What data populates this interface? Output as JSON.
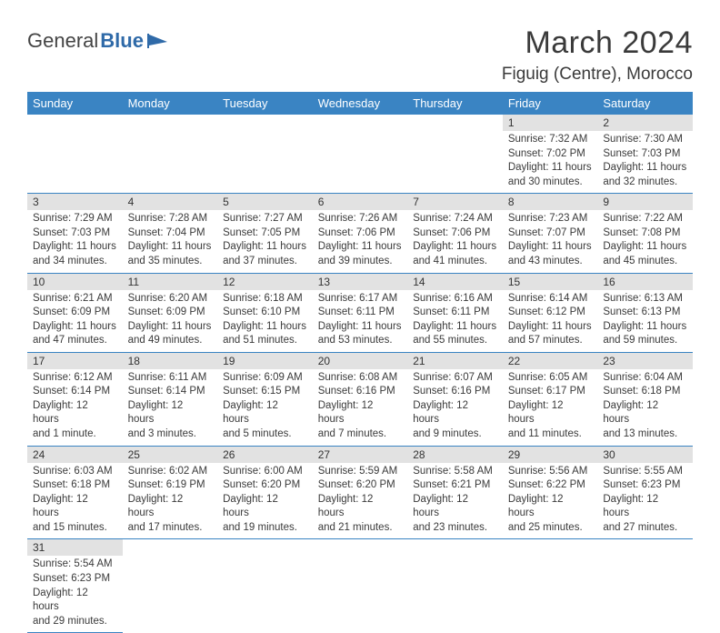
{
  "logo": {
    "word1": "General",
    "word2": "Blue"
  },
  "header": {
    "month": "March 2024",
    "location": "Figuig (Centre), Morocco"
  },
  "daynames": [
    "Sunday",
    "Monday",
    "Tuesday",
    "Wednesday",
    "Thursday",
    "Friday",
    "Saturday"
  ],
  "colors": {
    "header_bg": "#3a84c3",
    "daynum_bg": "#e2e2e2",
    "cell_border": "#3a84c3",
    "logo_blue": "#2f6aa8"
  },
  "days": {
    "1": {
      "sr": "Sunrise: 7:32 AM",
      "ss": "Sunset: 7:02 PM",
      "d1": "Daylight: 11 hours",
      "d2": "and 30 minutes."
    },
    "2": {
      "sr": "Sunrise: 7:30 AM",
      "ss": "Sunset: 7:03 PM",
      "d1": "Daylight: 11 hours",
      "d2": "and 32 minutes."
    },
    "3": {
      "sr": "Sunrise: 7:29 AM",
      "ss": "Sunset: 7:03 PM",
      "d1": "Daylight: 11 hours",
      "d2": "and 34 minutes."
    },
    "4": {
      "sr": "Sunrise: 7:28 AM",
      "ss": "Sunset: 7:04 PM",
      "d1": "Daylight: 11 hours",
      "d2": "and 35 minutes."
    },
    "5": {
      "sr": "Sunrise: 7:27 AM",
      "ss": "Sunset: 7:05 PM",
      "d1": "Daylight: 11 hours",
      "d2": "and 37 minutes."
    },
    "6": {
      "sr": "Sunrise: 7:26 AM",
      "ss": "Sunset: 7:06 PM",
      "d1": "Daylight: 11 hours",
      "d2": "and 39 minutes."
    },
    "7": {
      "sr": "Sunrise: 7:24 AM",
      "ss": "Sunset: 7:06 PM",
      "d1": "Daylight: 11 hours",
      "d2": "and 41 minutes."
    },
    "8": {
      "sr": "Sunrise: 7:23 AM",
      "ss": "Sunset: 7:07 PM",
      "d1": "Daylight: 11 hours",
      "d2": "and 43 minutes."
    },
    "9": {
      "sr": "Sunrise: 7:22 AM",
      "ss": "Sunset: 7:08 PM",
      "d1": "Daylight: 11 hours",
      "d2": "and 45 minutes."
    },
    "10": {
      "sr": "Sunrise: 6:21 AM",
      "ss": "Sunset: 6:09 PM",
      "d1": "Daylight: 11 hours",
      "d2": "and 47 minutes."
    },
    "11": {
      "sr": "Sunrise: 6:20 AM",
      "ss": "Sunset: 6:09 PM",
      "d1": "Daylight: 11 hours",
      "d2": "and 49 minutes."
    },
    "12": {
      "sr": "Sunrise: 6:18 AM",
      "ss": "Sunset: 6:10 PM",
      "d1": "Daylight: 11 hours",
      "d2": "and 51 minutes."
    },
    "13": {
      "sr": "Sunrise: 6:17 AM",
      "ss": "Sunset: 6:11 PM",
      "d1": "Daylight: 11 hours",
      "d2": "and 53 minutes."
    },
    "14": {
      "sr": "Sunrise: 6:16 AM",
      "ss": "Sunset: 6:11 PM",
      "d1": "Daylight: 11 hours",
      "d2": "and 55 minutes."
    },
    "15": {
      "sr": "Sunrise: 6:14 AM",
      "ss": "Sunset: 6:12 PM",
      "d1": "Daylight: 11 hours",
      "d2": "and 57 minutes."
    },
    "16": {
      "sr": "Sunrise: 6:13 AM",
      "ss": "Sunset: 6:13 PM",
      "d1": "Daylight: 11 hours",
      "d2": "and 59 minutes."
    },
    "17": {
      "sr": "Sunrise: 6:12 AM",
      "ss": "Sunset: 6:14 PM",
      "d1": "Daylight: 12 hours",
      "d2": "and 1 minute."
    },
    "18": {
      "sr": "Sunrise: 6:11 AM",
      "ss": "Sunset: 6:14 PM",
      "d1": "Daylight: 12 hours",
      "d2": "and 3 minutes."
    },
    "19": {
      "sr": "Sunrise: 6:09 AM",
      "ss": "Sunset: 6:15 PM",
      "d1": "Daylight: 12 hours",
      "d2": "and 5 minutes."
    },
    "20": {
      "sr": "Sunrise: 6:08 AM",
      "ss": "Sunset: 6:16 PM",
      "d1": "Daylight: 12 hours",
      "d2": "and 7 minutes."
    },
    "21": {
      "sr": "Sunrise: 6:07 AM",
      "ss": "Sunset: 6:16 PM",
      "d1": "Daylight: 12 hours",
      "d2": "and 9 minutes."
    },
    "22": {
      "sr": "Sunrise: 6:05 AM",
      "ss": "Sunset: 6:17 PM",
      "d1": "Daylight: 12 hours",
      "d2": "and 11 minutes."
    },
    "23": {
      "sr": "Sunrise: 6:04 AM",
      "ss": "Sunset: 6:18 PM",
      "d1": "Daylight: 12 hours",
      "d2": "and 13 minutes."
    },
    "24": {
      "sr": "Sunrise: 6:03 AM",
      "ss": "Sunset: 6:18 PM",
      "d1": "Daylight: 12 hours",
      "d2": "and 15 minutes."
    },
    "25": {
      "sr": "Sunrise: 6:02 AM",
      "ss": "Sunset: 6:19 PM",
      "d1": "Daylight: 12 hours",
      "d2": "and 17 minutes."
    },
    "26": {
      "sr": "Sunrise: 6:00 AM",
      "ss": "Sunset: 6:20 PM",
      "d1": "Daylight: 12 hours",
      "d2": "and 19 minutes."
    },
    "27": {
      "sr": "Sunrise: 5:59 AM",
      "ss": "Sunset: 6:20 PM",
      "d1": "Daylight: 12 hours",
      "d2": "and 21 minutes."
    },
    "28": {
      "sr": "Sunrise: 5:58 AM",
      "ss": "Sunset: 6:21 PM",
      "d1": "Daylight: 12 hours",
      "d2": "and 23 minutes."
    },
    "29": {
      "sr": "Sunrise: 5:56 AM",
      "ss": "Sunset: 6:22 PM",
      "d1": "Daylight: 12 hours",
      "d2": "and 25 minutes."
    },
    "30": {
      "sr": "Sunrise: 5:55 AM",
      "ss": "Sunset: 6:23 PM",
      "d1": "Daylight: 12 hours",
      "d2": "and 27 minutes."
    },
    "31": {
      "sr": "Sunrise: 5:54 AM",
      "ss": "Sunset: 6:23 PM",
      "d1": "Daylight: 12 hours",
      "d2": "and 29 minutes."
    }
  }
}
